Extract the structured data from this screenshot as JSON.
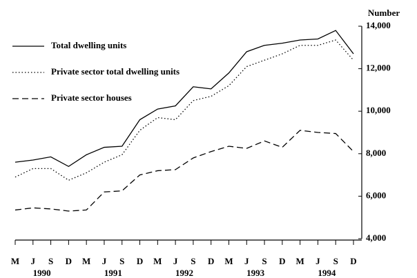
{
  "chart_data": {
    "type": "line",
    "y_axis_label": "Number",
    "categories": [
      "M",
      "J",
      "S",
      "D",
      "M",
      "J",
      "S",
      "D",
      "M",
      "J",
      "S",
      "D",
      "M",
      "J",
      "S",
      "D",
      "M",
      "J",
      "S",
      "D"
    ],
    "years": [
      "1990",
      "1991",
      "1992",
      "1993",
      "1994"
    ],
    "series": [
      {
        "name": "Total dwelling units",
        "color": "#000000",
        "dash": "solid",
        "values": [
          7600,
          7700,
          7850,
          7400,
          7950,
          8300,
          8350,
          9600,
          10100,
          10250,
          11150,
          11050,
          11800,
          12800,
          13100,
          13200,
          13350,
          13400,
          13800,
          12700
        ]
      },
      {
        "name": "Private sector total dwelling units",
        "color": "#000000",
        "dash": "dotted",
        "values": [
          6900,
          7300,
          7300,
          6750,
          7100,
          7600,
          7950,
          9100,
          9700,
          9600,
          10500,
          10700,
          11200,
          12100,
          12400,
          12700,
          13100,
          13100,
          13350,
          12400
        ]
      },
      {
        "name": "Private sector houses",
        "color": "#000000",
        "dash": "dashed",
        "values": [
          5350,
          5450,
          5400,
          5300,
          5350,
          6200,
          6250,
          7000,
          7200,
          7250,
          7800,
          8100,
          8350,
          8250,
          8600,
          8300,
          9100,
          9000,
          8950,
          8100
        ]
      }
    ],
    "ylim": [
      4000,
      14000
    ],
    "yticks": [
      {
        "value": 4000,
        "label": "4,000"
      },
      {
        "value": 6000,
        "label": "6,000"
      },
      {
        "value": 8000,
        "label": "8,000"
      },
      {
        "value": 10000,
        "label": "10,000"
      },
      {
        "value": 12000,
        "label": "12,000"
      },
      {
        "value": 14000,
        "label": "14,000"
      }
    ],
    "legend": "top-left"
  }
}
